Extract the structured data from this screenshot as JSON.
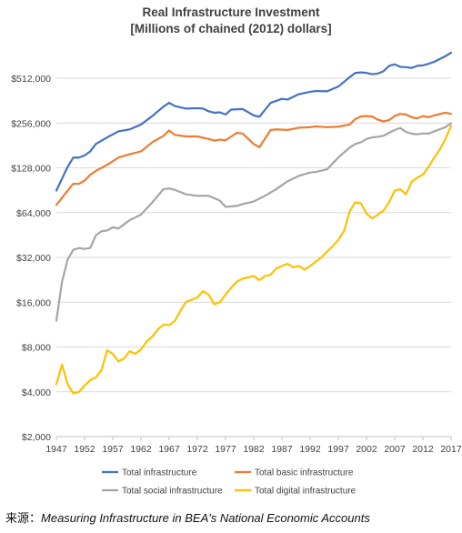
{
  "chart_data": {
    "type": "line",
    "title": "Real Infrastructure Investment",
    "subtitle": "[Millions of chained (2012) dollars]",
    "y_scale": "log2",
    "ylim": [
      2000,
      724000
    ],
    "y_ticks": [
      "$2,000",
      "$4,000",
      "$8,000",
      "$16,000",
      "$32,000",
      "$64,000",
      "$128,000",
      "$256,000",
      "$512,000"
    ],
    "y_tick_values": [
      2000,
      4000,
      8000,
      16000,
      32000,
      64000,
      128000,
      256000,
      512000
    ],
    "x_ticks": [
      "1947",
      "1952",
      "1957",
      "1962",
      "1967",
      "1972",
      "1977",
      "1982",
      "1987",
      "1992",
      "1997",
      "2002",
      "2007",
      "2012",
      "2017"
    ],
    "x_range": [
      1947,
      2017
    ],
    "gridlines": true,
    "legend_position": "bottom",
    "series": [
      {
        "name": "Total infrastructure",
        "color": "#4472C4",
        "x": [
          1947,
          1949,
          1950,
          1951,
          1952,
          1953,
          1954,
          1956,
          1958,
          1960,
          1962,
          1964,
          1966,
          1967,
          1968,
          1970,
          1972,
          1973,
          1974,
          1975,
          1976,
          1977,
          1978,
          1980,
          1982,
          1983,
          1985,
          1987,
          1988,
          1990,
          1992,
          1993,
          1995,
          1997,
          1999,
          2000,
          2001,
          2002,
          2003,
          2004,
          2005,
          2006,
          2007,
          2008,
          2009,
          2010,
          2011,
          2012,
          2013,
          2014,
          2016,
          2017
        ],
        "values": [
          90000,
          130000,
          150000,
          150000,
          155000,
          165000,
          185000,
          205000,
          225000,
          232000,
          250000,
          285000,
          330000,
          350000,
          333000,
          320000,
          322000,
          320000,
          307000,
          300000,
          302000,
          292000,
          315000,
          318000,
          288000,
          282000,
          350000,
          372000,
          368000,
          400000,
          415000,
          420000,
          418000,
          450000,
          520000,
          555000,
          560000,
          556000,
          545000,
          550000,
          570000,
          620000,
          635000,
          610000,
          608000,
          600000,
          620000,
          625000,
          640000,
          660000,
          720000,
          760000
        ]
      },
      {
        "name": "Total basic infrastructure",
        "color": "#ED7D31",
        "x": [
          1947,
          1949,
          1950,
          1951,
          1952,
          1953,
          1954,
          1956,
          1958,
          1960,
          1962,
          1964,
          1966,
          1967,
          1968,
          1970,
          1972,
          1974,
          1975,
          1976,
          1977,
          1979,
          1980,
          1982,
          1983,
          1985,
          1986,
          1988,
          1990,
          1992,
          1993,
          1995,
          1997,
          1999,
          2000,
          2001,
          2002,
          2003,
          2004,
          2005,
          2006,
          2007,
          2008,
          2009,
          2010,
          2011,
          2012,
          2013,
          2014,
          2016,
          2017
        ],
        "values": [
          72000,
          90000,
          100000,
          100000,
          105000,
          115000,
          122000,
          134000,
          150000,
          158000,
          165000,
          190000,
          210000,
          228000,
          213000,
          208000,
          208000,
          200000,
          195000,
          198000,
          196000,
          220000,
          218000,
          185000,
          176000,
          230000,
          232000,
          230000,
          238000,
          240000,
          243000,
          240000,
          242000,
          250000,
          272000,
          283000,
          285000,
          283000,
          270000,
          262000,
          268000,
          285000,
          295000,
          292000,
          280000,
          275000,
          285000,
          280000,
          288000,
          300000,
          295000
        ]
      },
      {
        "name": "Total social infrastructure",
        "color": "#A5A5A5",
        "x": [
          1947,
          1948,
          1949,
          1950,
          1951,
          1952,
          1953,
          1954,
          1955,
          1956,
          1957,
          1958,
          1960,
          1962,
          1964,
          1966,
          1967,
          1968,
          1970,
          1972,
          1974,
          1975,
          1976,
          1977,
          1979,
          1980,
          1982,
          1984,
          1986,
          1988,
          1990,
          1992,
          1993,
          1995,
          1997,
          1999,
          2000,
          2001,
          2002,
          2003,
          2004,
          2005,
          2006,
          2007,
          2008,
          2009,
          2010,
          2011,
          2012,
          2013,
          2014,
          2016,
          2017
        ],
        "values": [
          12000,
          22000,
          31000,
          36000,
          37000,
          36500,
          37000,
          45000,
          48000,
          48500,
          51000,
          50000,
          57000,
          62000,
          75000,
          92000,
          93000,
          91000,
          85000,
          83000,
          83000,
          80000,
          77000,
          70000,
          71000,
          73000,
          76000,
          83000,
          92000,
          104000,
          113000,
          119000,
          120000,
          125000,
          150000,
          175000,
          185000,
          190000,
          200000,
          205000,
          207000,
          210000,
          220000,
          230000,
          237000,
          223000,
          217000,
          215000,
          218000,
          217000,
          225000,
          240000,
          255000
        ]
      },
      {
        "name": "Total digital infrastructure",
        "color": "#FFC000",
        "x": [
          1947,
          1948,
          1949,
          1950,
          1951,
          1952,
          1953,
          1954,
          1955,
          1956,
          1957,
          1958,
          1959,
          1960,
          1961,
          1962,
          1963,
          1964,
          1965,
          1966,
          1967,
          1968,
          1969,
          1970,
          1971,
          1972,
          1973,
          1974,
          1975,
          1976,
          1977,
          1978,
          1979,
          1980,
          1981,
          1982,
          1983,
          1984,
          1985,
          1986,
          1987,
          1988,
          1989,
          1990,
          1991,
          1992,
          1993,
          1994,
          1995,
          1996,
          1997,
          1998,
          1999,
          2000,
          2001,
          2002,
          2003,
          2004,
          2005,
          2006,
          2007,
          2008,
          2009,
          2010,
          2011,
          2012,
          2013,
          2014,
          2015,
          2016,
          2017
        ],
        "values": [
          4500,
          6100,
          4500,
          3900,
          4000,
          4400,
          4800,
          5000,
          5600,
          7600,
          7200,
          6400,
          6700,
          7500,
          7200,
          7700,
          8700,
          9400,
          10500,
          11300,
          11200,
          12000,
          14000,
          16100,
          16600,
          17200,
          19000,
          18000,
          15500,
          16000,
          18000,
          20000,
          22000,
          23000,
          23500,
          24000,
          22500,
          24000,
          24500,
          27000,
          28000,
          29000,
          27500,
          28000,
          26500,
          28000,
          30000,
          32000,
          35000,
          38000,
          42000,
          48000,
          65000,
          75000,
          74000,
          63000,
          58500,
          62000,
          66000,
          75000,
          90000,
          92000,
          85000,
          103000,
          110000,
          115000,
          130000,
          150000,
          170000,
          200000,
          245000
        ]
      }
    ]
  },
  "source": {
    "prefix": "来源：",
    "text": "Measuring Infrastructure in BEA's National Economic Accounts"
  }
}
